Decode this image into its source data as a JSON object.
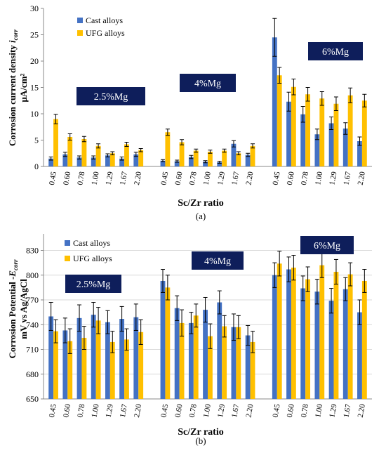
{
  "colors": {
    "cast": "#4472C4",
    "ufg": "#FFC000",
    "group_box": "#0E1E5B",
    "group_text": "#ffffff",
    "axis": "#888888",
    "grid": "#d9d9d9"
  },
  "chart_data": [
    {
      "type": "bar",
      "panel_label": "(a)",
      "title": "",
      "ylabel_main": "Corrosion current density ",
      "ylabel_sym": "i",
      "ylabel_sub": "corr",
      "ylabel_unit": "μA/cm²",
      "xlabel": "Sc/Zr ratio",
      "ylim": [
        0,
        30
      ],
      "yticks": [
        0,
        5,
        10,
        15,
        20,
        25,
        30
      ],
      "legend": [
        "Cast alloys",
        "UFG alloys"
      ],
      "legend_position": "top-left",
      "grid": false,
      "groups": [
        {
          "label": "2.5%Mg",
          "categories": [
            "0.45",
            "0.60",
            "0.78",
            "1.00",
            "1.29",
            "1.67",
            "2.20"
          ],
          "series": [
            {
              "name": "Cast alloys",
              "values": [
                1.5,
                2.3,
                1.7,
                1.7,
                2.1,
                1.5,
                2.3
              ],
              "errors": [
                0.3,
                0.4,
                0.3,
                0.3,
                0.3,
                0.3,
                0.4
              ]
            },
            {
              "name": "UFG alloys",
              "values": [
                9.0,
                5.6,
                5.2,
                3.9,
                2.5,
                4.2,
                3.1
              ],
              "errors": [
                0.9,
                0.6,
                0.5,
                0.4,
                0.3,
                0.4,
                0.3
              ]
            }
          ]
        },
        {
          "label": "4%Mg",
          "categories": [
            "0.45",
            "0.60",
            "0.78",
            "1.00",
            "1.29",
            "1.67",
            "2.20"
          ],
          "series": [
            {
              "name": "Cast alloys",
              "values": [
                1.1,
                1.0,
                1.8,
                0.9,
                0.8,
                4.3,
                2.2
              ],
              "errors": [
                0.2,
                0.2,
                0.3,
                0.2,
                0.2,
                0.6,
                0.3
              ]
            },
            {
              "name": "UFG alloys",
              "values": [
                6.5,
                4.6,
                3.0,
                2.8,
                3.0,
                2.5,
                3.9
              ],
              "errors": [
                0.6,
                0.5,
                0.3,
                0.3,
                0.3,
                0.3,
                0.4
              ]
            }
          ]
        },
        {
          "label": "6%Mg",
          "categories": [
            "0.45",
            "0.60",
            "0.78",
            "1.00",
            "1.29",
            "1.67",
            "2.20"
          ],
          "series": [
            {
              "name": "Cast alloys",
              "values": [
                24.5,
                12.3,
                9.9,
                6.1,
                8.2,
                7.2,
                4.8
              ],
              "errors": [
                3.6,
                1.8,
                1.5,
                1.0,
                1.2,
                1.1,
                0.8
              ]
            },
            {
              "name": "UFG alloys",
              "values": [
                17.3,
                15.1,
                13.7,
                12.9,
                11.9,
                13.5,
                12.5
              ],
              "errors": [
                1.5,
                1.5,
                1.3,
                1.3,
                1.3,
                1.4,
                1.2
              ]
            }
          ]
        }
      ]
    },
    {
      "type": "bar",
      "panel_label": "(b)",
      "title": "",
      "ylabel_main": "Corrosion Potential -",
      "ylabel_sym": "E",
      "ylabel_sub": "corr",
      "ylabel_unit": "mV vs Ag/AgCl",
      "xlabel": "Sc/Zr ratio",
      "ylim": [
        650,
        850
      ],
      "yticks": [
        650,
        680,
        710,
        740,
        770,
        800,
        830
      ],
      "legend": [
        "Cast alloys",
        "UFG alloys"
      ],
      "legend_position": "top-left",
      "grid": true,
      "groups": [
        {
          "label": "2.5%Mg",
          "categories": [
            "0.45",
            "0.60",
            "0.78",
            "1.00",
            "1.29",
            "1.67",
            "2.20"
          ],
          "series": [
            {
              "name": "Cast alloys",
              "values": [
                750,
                733,
                748,
                752,
                743,
                747,
                749
              ],
              "errors": [
                17,
                15,
                16,
                15,
                14,
                15,
                16
              ]
            },
            {
              "name": "UFG alloys",
              "values": [
                732,
                720,
                724,
                745,
                719,
                722,
                731
              ],
              "errors": [
                14,
                15,
                14,
                16,
                13,
                13,
                15
              ]
            }
          ]
        },
        {
          "label": "4%Mg",
          "categories": [
            "0.45",
            "0.60",
            "0.78",
            "1.00",
            "1.29",
            "1.67",
            "2.20"
          ],
          "series": [
            {
              "name": "Cast alloys",
              "values": [
                793,
                760,
                742,
                758,
                767,
                737,
                727
              ],
              "errors": [
                14,
                15,
                13,
                15,
                14,
                16,
                12
              ]
            },
            {
              "name": "UFG alloys",
              "values": [
                785,
                742,
                751,
                726,
                738,
                737,
                719
              ],
              "errors": [
                15,
                16,
                14,
                15,
                13,
                14,
                13
              ]
            }
          ]
        },
        {
          "label": "6%Mg",
          "categories": [
            "0.45",
            "0.60",
            "0.78",
            "1.00",
            "1.29",
            "1.67",
            "2.20"
          ],
          "series": [
            {
              "name": "Cast alloys",
              "values": [
                800,
                807,
                784,
                780,
                769,
                783,
                755
              ],
              "errors": [
                15,
                15,
                15,
                15,
                15,
                14,
                15
              ]
            },
            {
              "name": "UFG alloys",
              "values": [
                814,
                809,
                795,
                812,
                804,
                801,
                793
              ],
              "errors": [
                15,
                15,
                15,
                15,
                15,
                14,
                14
              ]
            }
          ]
        }
      ]
    }
  ]
}
